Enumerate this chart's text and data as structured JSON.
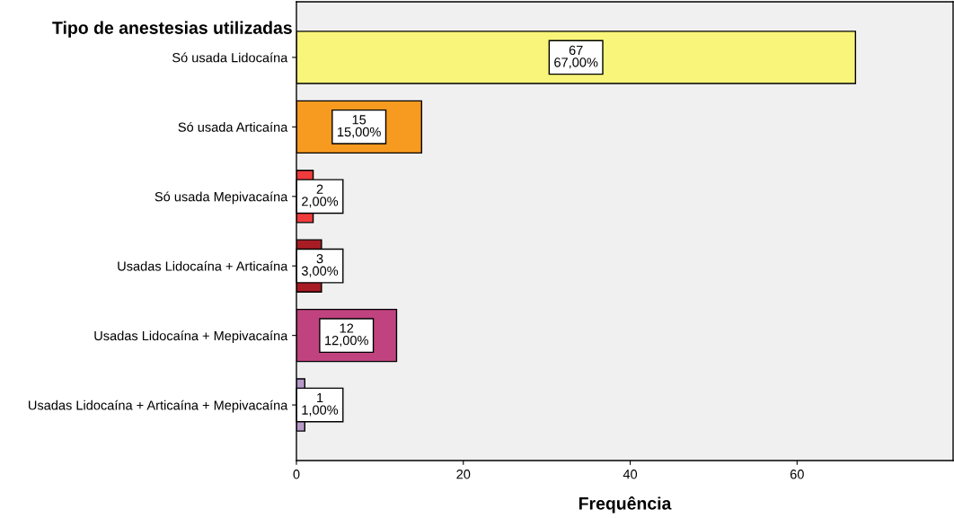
{
  "chart_data": {
    "type": "bar",
    "orientation": "horizontal",
    "ylabel": "Tipo de anestesias utilizadas",
    "xlabel": "Frequência",
    "categories": [
      "Só usada Lidocaína",
      "Só usada Articaína",
      "Só usada Mepivacaína",
      "Usadas Lidocaína + Articaína",
      "Usadas Lidocaína + Mepivacaína",
      "Usadas Lidocaína + Articaína + Mepivacaína"
    ],
    "values": [
      67,
      15,
      2,
      3,
      12,
      1
    ],
    "colors": [
      "#f8f57a",
      "#f79a20",
      "#f03c3c",
      "#a81c24",
      "#c0437f",
      "#b89ac8"
    ],
    "value_labels": [
      "67\n67,00%",
      "15\n15,00%",
      "2\n2,00%",
      "3\n3,00%",
      "12\n12,00%",
      "1\n1,00%"
    ],
    "xlim": [
      0,
      78.7
    ],
    "xticks": [
      0,
      20,
      40,
      60
    ],
    "grid": false,
    "legend": false
  }
}
